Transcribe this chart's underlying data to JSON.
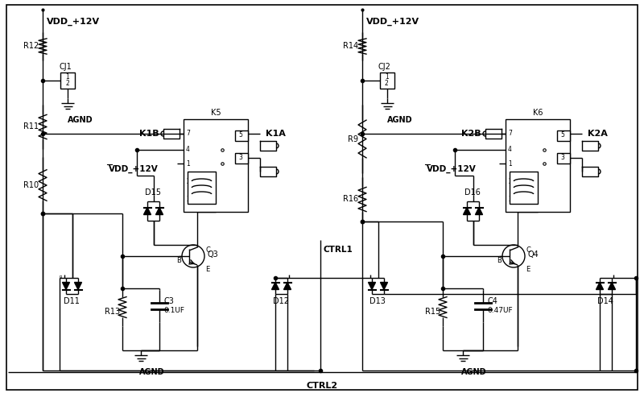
{
  "bg_color": "#ffffff",
  "line_color": "#000000",
  "fig_width": 8.0,
  "fig_height": 5.14,
  "dpi": 100,
  "labels": {
    "VDD_12V_L": "VDD_+12V",
    "VDD_12V_R": "VDD_+12V",
    "VDD_12V_L2": "VDD_+12V",
    "VDD_12V_R2": "VDD_+12V",
    "R12": "R12",
    "R11": "R11",
    "R10": "R10",
    "R14": "R14",
    "R9": "R9",
    "R16": "R16",
    "R13": "R13",
    "R15": "R15",
    "CJ1": "CJ1",
    "CJ2": "CJ2",
    "K1A": "K1A",
    "K1B": "K1B",
    "K5": "K5",
    "K2A": "K2A",
    "K2B": "K2B",
    "K6": "K6",
    "D11": "D11",
    "D12": "D12",
    "D13": "D13",
    "D14": "D14",
    "D15": "D15",
    "D16": "D16",
    "Q3": "Q3",
    "Q4": "Q4",
    "C3": "C3",
    "C3val": "0.1UF",
    "C4": "C4",
    "C4val": "0.47UF",
    "AGND1": "AGND",
    "AGND2": "AGND",
    "AGND3": "AGND",
    "AGND4": "AGND",
    "CTRL1": "CTRL1",
    "CTRL2": "CTRL2"
  }
}
